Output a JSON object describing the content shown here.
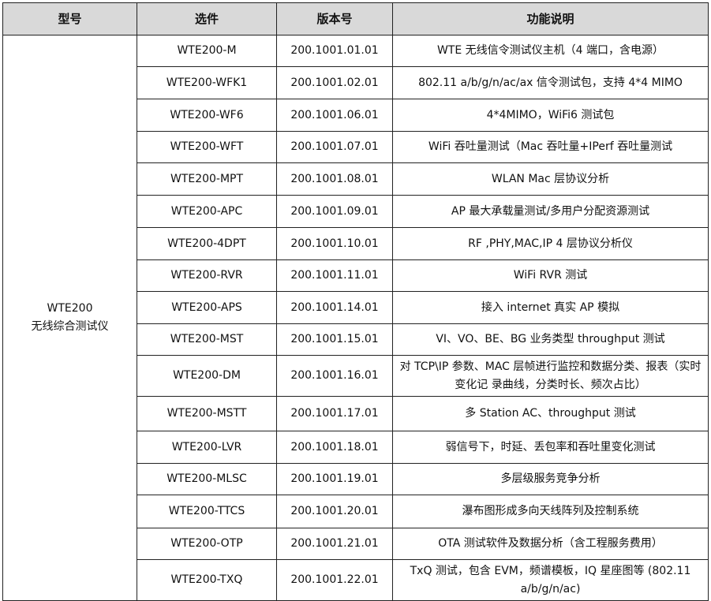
{
  "headers": [
    "型号",
    "选件",
    "版本号",
    "功能说明"
  ],
  "model": {
    "line1": "WTE200",
    "line2": "无线综合测试仪"
  },
  "rows": [
    {
      "option": "WTE200-M",
      "version": "200.1001.01.01",
      "desc": "WTE 无线信令测试仪主机（4 端口，含电源）"
    },
    {
      "option": "WTE200-WFK1",
      "version": "200.1001.02.01",
      "desc": "802.11 a/b/g/n/ac/ax 信令测试包，支持 4*4 MIMO"
    },
    {
      "option": "WTE200-WF6",
      "version": "200.1001.06.01",
      "desc": "4*4MIMO，WiFi6 测试包"
    },
    {
      "option": "WTE200-WFT",
      "version": "200.1001.07.01",
      "desc": "WiFi 吞吐量测试（Mac 吞吐量+IPerf 吞吐量测试"
    },
    {
      "option": "WTE200-MPT",
      "version": "200.1001.08.01",
      "desc": "WLAN Mac 层协议分析"
    },
    {
      "option": "WTE200-APC",
      "version": "200.1001.09.01",
      "desc": "AP 最大承载量测试/多用户分配资源测试"
    },
    {
      "option": "WTE200-4DPT",
      "version": "200.1001.10.01",
      "desc": "RF ,PHY,MAC,IP 4 层协议分析仪"
    },
    {
      "option": "WTE200-RVR",
      "version": "200.1001.11.01",
      "desc": "WiFi RVR 测试"
    },
    {
      "option": "WTE200-APS",
      "version": "200.1001.14.01",
      "desc": "接入 internet 真实 AP 模拟"
    },
    {
      "option": "WTE200-MST",
      "version": "200.1001.15.01",
      "desc": "VI、VO、BE、BG 业务类型 throughput 测试"
    },
    {
      "option": "WTE200-DM",
      "version": "200.1001.16.01",
      "desc": "对 TCP\\IP 参数、MAC 层帧进行监控和数据分类、报表（实时变化记 录曲线，分类时长、频次占比）"
    },
    {
      "option": "WTE200-MSTT",
      "version": "200.1001.17.01",
      "desc": "多 Station AC、throughput 测试"
    },
    {
      "option": "WTE200-LVR",
      "version": "200.1001.18.01",
      "desc": "弱信号下，时延、丢包率和吞吐里变化测试"
    },
    {
      "option": "WTE200-MLSC",
      "version": "200.1001.19.01",
      "desc": "多层级服务竞争分析"
    },
    {
      "option": "WTE200-TTCS",
      "version": "200.1001.20.01",
      "desc": "瀑布图形成多向天线阵列及控制系统"
    },
    {
      "option": "WTE200-OTP",
      "version": "200.1001.21.01",
      "desc": "OTA 测试软件及数据分析（含工程服务费用）"
    },
    {
      "option": "WTE200-TXQ",
      "version": "200.1001.22.01",
      "desc": "TxQ 测试，包含 EVM，频谱模板，IQ 星座图等 (802.11 a/b/g/n/ac)"
    }
  ]
}
